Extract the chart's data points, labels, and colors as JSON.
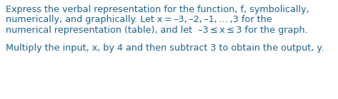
{
  "lines_para1": [
    "Express the verbal representation for the function, f, symbolically,",
    "numerically, and graphically. Let x = –3, –2, –1, … ,3 for the",
    "numerical representation (table), and let  –3 ≤ x ≤ 3 for the graph."
  ],
  "line_para2": "Multiply the input, x, by 4 and then subtract 3 to obtain the output, y.",
  "text_color": "#1f618d",
  "background_color": "#ffffff",
  "fontsize": 9.2,
  "figwidth": 4.73,
  "figheight": 1.39,
  "dpi": 100
}
